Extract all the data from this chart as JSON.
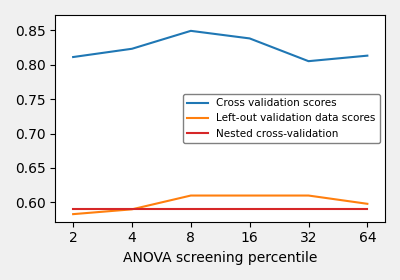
{
  "x_positions": [
    0,
    1,
    2,
    3,
    4,
    5
  ],
  "cv_scores": [
    0.811,
    0.823,
    0.849,
    0.838,
    0.805,
    0.813
  ],
  "leftout_scores": [
    0.583,
    0.59,
    0.61,
    0.61,
    0.61,
    0.598
  ],
  "nested_cv": [
    0.59,
    0.59,
    0.59,
    0.59,
    0.59,
    0.59
  ],
  "cv_color": "#1f77b4",
  "leftout_color": "#ff7f0e",
  "nested_color": "#d62728",
  "xlabel": "ANOVA screening percentile",
  "legend_labels": [
    "Cross validation scores",
    "Left-out validation data scores",
    "Nested cross-validation"
  ],
  "xtick_labels": [
    "2",
    "4",
    "8",
    "16",
    "32",
    "64"
  ],
  "yticks": [
    0.6,
    0.65,
    0.7,
    0.75,
    0.8,
    0.85
  ],
  "ylim": [
    0.572,
    0.872
  ],
  "xlim": [
    -0.3,
    5.3
  ],
  "legend_loc": "center right",
  "legend_fontsize": 7.5,
  "bg_color": "#f0f0f0"
}
